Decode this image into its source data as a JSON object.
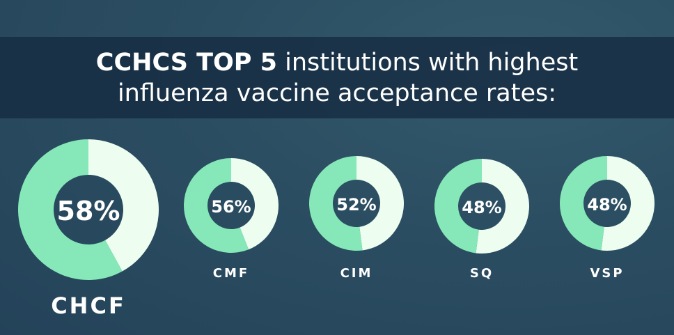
{
  "title": {
    "bold": "CCHCS TOP 5",
    "rest_line1": " institutions with highest",
    "line2": "influenza vaccine acceptance rates:"
  },
  "colors": {
    "accepted": "#86e8b8",
    "remaining": "#edfdf0",
    "background": "#2b4d61",
    "banner": "#1c3650"
  },
  "chart_data": {
    "type": "pie",
    "style": "donut",
    "categories": [
      "CHCF",
      "CMF",
      "CIM",
      "SQ",
      "VSP"
    ],
    "values": [
      58,
      56,
      52,
      48,
      48
    ],
    "value_labels": [
      "58%",
      "56%",
      "52%",
      "48%",
      "48%"
    ],
    "unit": "%"
  }
}
